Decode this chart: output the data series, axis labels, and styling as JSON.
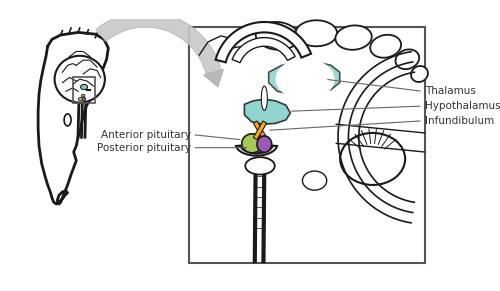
{
  "bg_color": "#ffffff",
  "line_color": "#1a1a1a",
  "label_color": "#333333",
  "arrow_color": "#aaaaaa",
  "thalamus_color": "#7ecdc8",
  "hypothalamus_color": "#7ecdc8",
  "infundibulum_color": "#f5a623",
  "anterior_pituitary_color": "#a8c85a",
  "posterior_pituitary_color": "#9b59b6",
  "labels": {
    "thalamus": "Thalamus",
    "hypothalamus": "Hypothalamus",
    "infundibulum": "Infundibulum",
    "anterior_pituitary": "Anterior pituitary",
    "posterior_pituitary": "Posterior pituitary"
  },
  "figsize": [
    5.0,
    2.91
  ],
  "dpi": 100
}
